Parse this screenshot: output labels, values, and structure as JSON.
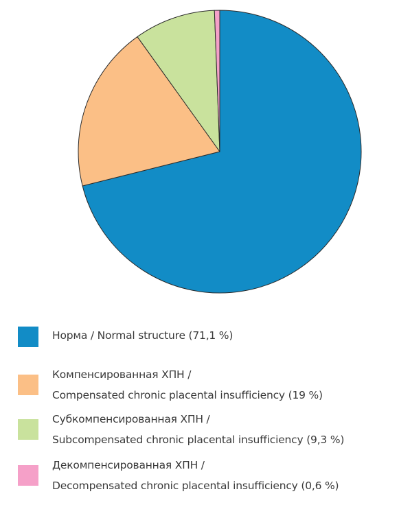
{
  "chart_data": {
    "type": "pie",
    "start_angle_deg": 0,
    "direction": "clockwise",
    "slices": [
      {
        "label": "Норма / Normal structure",
        "value": 71.1,
        "value_label": "(71,1 %)",
        "color": "#128cc6"
      },
      {
        "label": "Компенсированная ХПН / Compensated chronic placental insufficiency",
        "value": 19,
        "value_label": "(19 %)",
        "color": "#fbbf86"
      },
      {
        "label": "Субкомпенсированная ХПН / Subcompensated chronic placental insufficiency",
        "value": 9.3,
        "value_label": "(9,3 %)",
        "color": "#c9e29d"
      },
      {
        "label": "Декомпенсированная ХПН / Decompensated chronic placental insufficiency",
        "value": 0.6,
        "value_label": "(0,6 %)",
        "color": "#f5a0c8"
      }
    ],
    "legend": {
      "placement": "bottom",
      "entries": [
        {
          "line1": "Норма / Normal structure (71,1 %)",
          "color": "#128cc6"
        },
        {
          "line1": "Компенсированная ХПН /",
          "line2": "Compensated chronic placental insufficiency (19 %)",
          "color": "#fbbf86"
        },
        {
          "line1": "Субкомпенсированная ХПН /",
          "line2": "Subcompensated chronic placental insufficiency (9,3 %)",
          "color": "#c9e29d"
        },
        {
          "line1": "Декомпенсированная ХПН /",
          "line2": "Decompensated chronic placental insufficiency (0,6 %)",
          "color": "#f5a0c8"
        }
      ]
    }
  }
}
